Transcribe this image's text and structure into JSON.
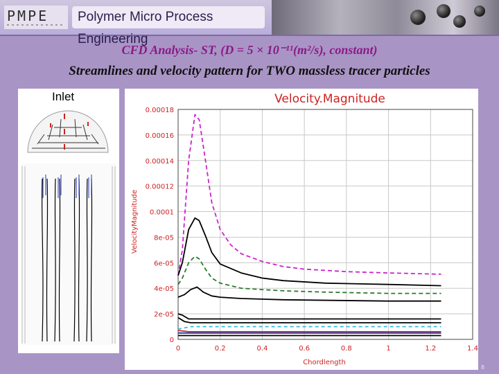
{
  "header": {
    "logo_text": "PMPE",
    "title": "Polymer Micro Process Engineering"
  },
  "slide": {
    "title": "CFD Analysis- ST, (D = 5 × 10⁻¹¹(m²/s), constant)",
    "subtitle": "Streamlines and velocity pattern for TWO massless tracer particles"
  },
  "inlet_panel": {
    "label": "Inlet"
  },
  "page_number": "8",
  "chart_data": {
    "type": "line",
    "title": "Velocity.Magnitude",
    "xlabel": "Chordlength",
    "ylabel": "VelocityMagnitude",
    "xlim": [
      0,
      1.4
    ],
    "ylim": [
      0,
      0.00018
    ],
    "xticks": [
      0,
      0.2,
      0.4,
      0.6,
      0.8,
      1,
      1.2,
      1.4
    ],
    "xtick_labels": [
      "0",
      "0.2",
      "0.4",
      "0.6",
      "0.8",
      "1",
      "1.2",
      "1.4"
    ],
    "yticks": [
      0,
      2e-05,
      4e-05,
      6e-05,
      8e-05,
      0.0001,
      0.00012,
      0.00014,
      0.00016,
      0.00018
    ],
    "ytick_labels": [
      "0",
      "2e-05",
      "4e-05",
      "6e-05",
      "8e-05",
      "0.0001",
      "0.00012",
      "0.00014",
      "0.00016",
      "0.00018"
    ],
    "grid": true,
    "series": [
      {
        "name": "magenta-dashed",
        "color": "#cc22cc",
        "dash": "6,4",
        "x": [
          0,
          0.02,
          0.05,
          0.08,
          0.1,
          0.13,
          0.16,
          0.2,
          0.25,
          0.3,
          0.4,
          0.5,
          0.6,
          0.8,
          1.0,
          1.25
        ],
        "y": [
          5e-05,
          7e-05,
          0.00014,
          0.000176,
          0.000172,
          0.00014,
          0.000107,
          8.6e-05,
          7.4e-05,
          6.7e-05,
          6.1e-05,
          5.7e-05,
          5.5e-05,
          5.3e-05,
          5.2e-05,
          5.1e-05
        ]
      },
      {
        "name": "black-solid-1",
        "color": "#000000",
        "dash": "",
        "x": [
          0,
          0.02,
          0.05,
          0.08,
          0.1,
          0.13,
          0.16,
          0.2,
          0.3,
          0.4,
          0.5,
          0.7,
          1.0,
          1.25
        ],
        "y": [
          5e-05,
          6e-05,
          8.6e-05,
          9.5e-05,
          9.3e-05,
          8.1e-05,
          6.8e-05,
          5.9e-05,
          5.2e-05,
          4.8e-05,
          4.6e-05,
          4.4e-05,
          4.3e-05,
          4.2e-05
        ]
      },
      {
        "name": "green-dashed",
        "color": "#2a7a2a",
        "dash": "6,4",
        "x": [
          0,
          0.02,
          0.05,
          0.08,
          0.1,
          0.13,
          0.16,
          0.2,
          0.3,
          0.4,
          0.5,
          0.7,
          1.0,
          1.25
        ],
        "y": [
          4.3e-05,
          4.8e-05,
          6e-05,
          6.5e-05,
          6.3e-05,
          5.5e-05,
          4.8e-05,
          4.4e-05,
          4e-05,
          3.9e-05,
          3.8e-05,
          3.7e-05,
          3.6e-05,
          3.6e-05
        ]
      },
      {
        "name": "black-solid-2",
        "color": "#000000",
        "dash": "",
        "x": [
          0,
          0.03,
          0.06,
          0.09,
          0.12,
          0.16,
          0.2,
          0.3,
          0.5,
          1.0,
          1.25
        ],
        "y": [
          3.3e-05,
          3.5e-05,
          3.9e-05,
          4.1e-05,
          3.7e-05,
          3.4e-05,
          3.3e-05,
          3.2e-05,
          3.1e-05,
          3e-05,
          3e-05
        ]
      },
      {
        "name": "black-solid-3",
        "color": "#000000",
        "dash": "",
        "x": [
          0,
          0.02,
          0.05,
          0.1,
          0.3,
          0.6,
          1.0,
          1.25
        ],
        "y": [
          2e-05,
          1.9e-05,
          1.6e-05,
          1.6e-05,
          1.6e-05,
          1.6e-05,
          1.6e-05,
          1.6e-05
        ]
      },
      {
        "name": "black-solid-4",
        "color": "#000000",
        "dash": "",
        "x": [
          0,
          0.03,
          0.06,
          0.1,
          0.3,
          0.6,
          1.0,
          1.25
        ],
        "y": [
          1.7e-05,
          1.4e-05,
          1.3e-05,
          1.3e-05,
          1.3e-05,
          1.3e-05,
          1.3e-05,
          1.3e-05
        ]
      },
      {
        "name": "cyan-dashed",
        "color": "#33bbdd",
        "dash": "5,4",
        "x": [
          0,
          0.03,
          0.06,
          0.1,
          0.3,
          0.6,
          1.0,
          1.25
        ],
        "y": [
          8e-06,
          9e-06,
          1e-05,
          1e-05,
          1e-05,
          1e-05,
          1e-05,
          1e-05
        ]
      },
      {
        "name": "red-solid",
        "color": "#cc2222",
        "dash": "",
        "x": [
          0,
          0.05,
          0.1,
          0.3,
          0.6,
          1.0,
          1.25
        ],
        "y": [
          7e-06,
          6e-06,
          6e-06,
          6e-06,
          6e-06,
          6e-06,
          6e-06
        ]
      },
      {
        "name": "blue-solid",
        "color": "#2233aa",
        "dash": "",
        "x": [
          0,
          0.05,
          0.1,
          0.3,
          0.6,
          1.0,
          1.25
        ],
        "y": [
          5e-06,
          5e-06,
          5e-06,
          5e-06,
          5e-06,
          5e-06,
          5e-06
        ]
      },
      {
        "name": "black-solid-5",
        "color": "#000000",
        "dash": "",
        "x": [
          0,
          0.05,
          0.1,
          0.3,
          0.6,
          1.0,
          1.25
        ],
        "y": [
          3e-06,
          3e-06,
          3e-06,
          3e-06,
          3e-06,
          3e-06,
          3e-06
        ]
      }
    ]
  }
}
